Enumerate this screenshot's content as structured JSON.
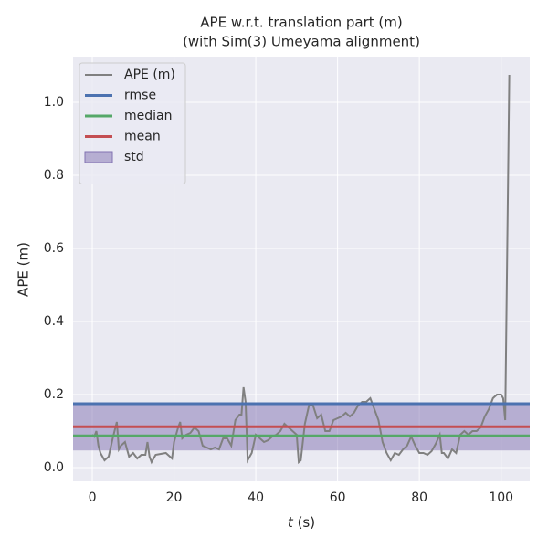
{
  "chart_data": {
    "type": "line",
    "title": "APE w.r.t. translation part (m)",
    "subtitle": "(with Sim(3) Umeyama alignment)",
    "xlabel": {
      "var": "t",
      "unit": "(s)"
    },
    "ylabel": "APE (m)",
    "xlim": [
      -4.7,
      107
    ],
    "ylim": [
      -0.0375,
      1.125
    ],
    "xticks": [
      0,
      20,
      40,
      60,
      80,
      100
    ],
    "yticks": [
      {
        "value": 0,
        "label": "0.0"
      },
      0.2,
      0.4,
      0.6,
      0.8,
      {
        "value": 1,
        "label": "1.0"
      }
    ],
    "grid": true,
    "legend": "upper left",
    "series": [
      {
        "name": "APE (m)",
        "color": "#808080",
        "x": [
          0,
          0.5,
          1,
          1.5,
          2,
          3,
          4,
          5,
          6,
          6.5,
          7,
          8,
          9,
          10,
          11,
          12,
          13,
          13.5,
          14,
          14.5,
          15.5,
          18,
          19,
          19.5,
          20,
          21,
          21.5,
          22,
          23,
          24,
          25,
          26,
          27,
          28,
          29,
          30,
          31,
          32,
          33,
          34,
          35,
          36,
          36.5,
          37,
          37.5,
          38,
          39,
          40,
          41,
          42,
          43,
          44,
          45,
          46,
          47,
          48,
          49,
          50,
          50.5,
          51,
          52,
          53,
          54,
          55,
          56,
          57,
          58,
          59,
          60,
          61,
          62,
          63,
          64,
          65,
          66,
          67,
          68,
          69,
          70,
          71,
          72,
          73,
          74,
          75,
          76,
          77,
          78,
          79,
          80,
          81,
          82,
          83,
          84,
          85,
          85.5,
          86,
          87,
          88,
          89,
          90,
          91,
          92,
          93,
          94,
          95,
          96,
          97,
          98,
          99,
          100,
          100.5,
          101,
          101.5,
          102
        ],
        "values": [
          0.09,
          0.085,
          0.1,
          0.06,
          0.04,
          0.02,
          0.03,
          0.08,
          0.125,
          0.05,
          0.06,
          0.07,
          0.03,
          0.04,
          0.025,
          0.035,
          0.035,
          0.07,
          0.03,
          0.015,
          0.035,
          0.04,
          0.03,
          0.025,
          0.07,
          0.11,
          0.125,
          0.08,
          0.09,
          0.095,
          0.11,
          0.1,
          0.06,
          0.055,
          0.05,
          0.055,
          0.05,
          0.08,
          0.08,
          0.06,
          0.13,
          0.145,
          0.145,
          0.22,
          0.18,
          0.02,
          0.04,
          0.09,
          0.08,
          0.07,
          0.075,
          0.085,
          0.09,
          0.1,
          0.12,
          0.11,
          0.1,
          0.09,
          0.015,
          0.02,
          0.12,
          0.17,
          0.17,
          0.135,
          0.145,
          0.1,
          0.1,
          0.13,
          0.135,
          0.14,
          0.15,
          0.14,
          0.15,
          0.17,
          0.18,
          0.18,
          0.19,
          0.16,
          0.13,
          0.07,
          0.04,
          0.02,
          0.04,
          0.035,
          0.05,
          0.06,
          0.085,
          0.06,
          0.04,
          0.04,
          0.035,
          0.045,
          0.065,
          0.09,
          0.04,
          0.04,
          0.025,
          0.05,
          0.04,
          0.09,
          0.1,
          0.09,
          0.1,
          0.1,
          0.11,
          0.14,
          0.16,
          0.19,
          0.2,
          0.2,
          0.19,
          0.13,
          0.6,
          1.075
        ]
      }
    ],
    "stats": [
      {
        "name": "rmse",
        "color": "#4c72b0",
        "value": 0.175
      },
      {
        "name": "median",
        "color": "#55a868",
        "value": 0.087
      },
      {
        "name": "mean",
        "color": "#c44e52",
        "value": 0.112
      }
    ],
    "std": {
      "name": "std",
      "color": "#8172b2",
      "value": 0.065
    }
  }
}
